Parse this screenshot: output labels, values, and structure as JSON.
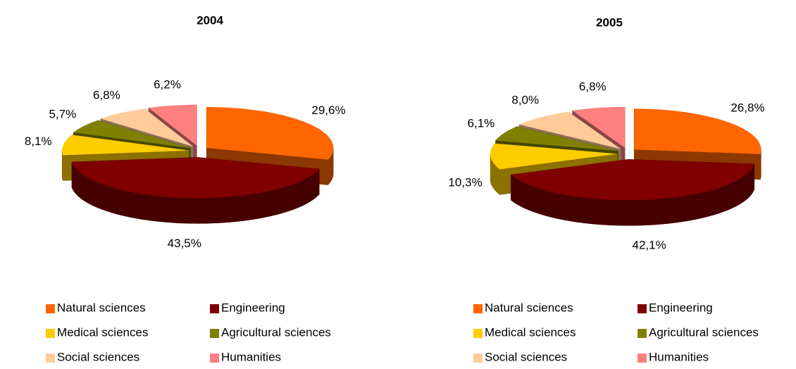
{
  "chart_data": [
    {
      "type": "pie",
      "title": "2004",
      "categories": [
        "Natural sciences",
        "Engineering",
        "Medical sciences",
        "Agricultural sciences",
        "Social sciences",
        "Humanities"
      ],
      "values": [
        29.6,
        43.5,
        8.1,
        5.7,
        6.8,
        6.2
      ],
      "value_labels": [
        "29,6%",
        "43,5%",
        "8,1%",
        "5,7%",
        "6,8%",
        "6,2%"
      ],
      "colors": [
        "#ff6600",
        "#800000",
        "#ffcc00",
        "#808000",
        "#ffcc99",
        "#ff8080"
      ]
    },
    {
      "type": "pie",
      "title": "2005",
      "categories": [
        "Natural sciences",
        "Engineering",
        "Medical sciences",
        "Agricultural sciences",
        "Social sciences",
        "Humanities"
      ],
      "values": [
        26.8,
        42.1,
        10.3,
        6.1,
        8.0,
        6.8
      ],
      "value_labels": [
        "26,8%",
        "42,1%",
        "10,3%",
        "6,1%",
        "8,0%",
        "6,8%"
      ],
      "colors": [
        "#ff6600",
        "#800000",
        "#ffcc00",
        "#808000",
        "#ffcc99",
        "#ff8080"
      ]
    }
  ]
}
